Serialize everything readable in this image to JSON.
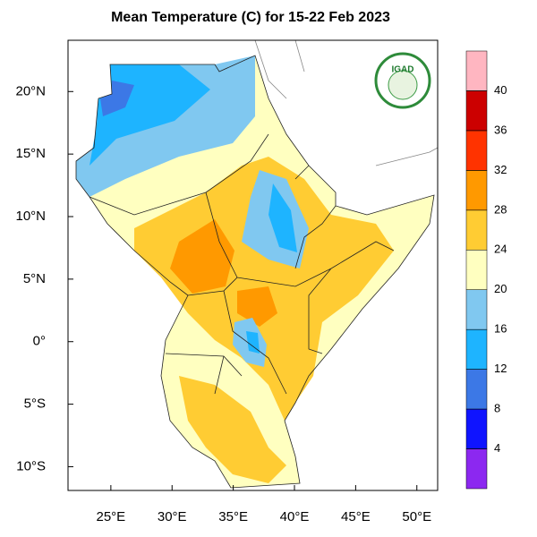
{
  "chart_data": {
    "type": "map",
    "title": "Mean Temperature (C) for 15-22 Feb 2023",
    "logo_text": "IGAD",
    "xlim": [
      21.5,
      51.7
    ],
    "ylim": [
      -11.9,
      24.1
    ],
    "xticks": [
      {
        "value": 25,
        "label": "25°E"
      },
      {
        "value": 30,
        "label": "30°E"
      },
      {
        "value": 35,
        "label": "35°E"
      },
      {
        "value": 40,
        "label": "40°E"
      },
      {
        "value": 45,
        "label": "45°E"
      },
      {
        "value": 50,
        "label": "50°E"
      }
    ],
    "yticks": [
      {
        "value": 20,
        "label": "20°N"
      },
      {
        "value": 15,
        "label": "15°N"
      },
      {
        "value": 10,
        "label": "10°N"
      },
      {
        "value": 5,
        "label": "5°N"
      },
      {
        "value": 0,
        "label": "0°"
      },
      {
        "value": -5,
        "label": "5°S"
      },
      {
        "value": -10,
        "label": "10°S"
      }
    ],
    "colorbar": {
      "levels": [
        4,
        8,
        12,
        16,
        20,
        24,
        28,
        32,
        36,
        40
      ],
      "colors": [
        "#8c28f0",
        "#0f14ff",
        "#3c78e6",
        "#1eb4ff",
        "#80c8f0",
        "#ffffc0",
        "#ffcc33",
        "#ff9900",
        "#ff3300",
        "#cc0000",
        "#ffb6c1"
      ]
    }
  }
}
